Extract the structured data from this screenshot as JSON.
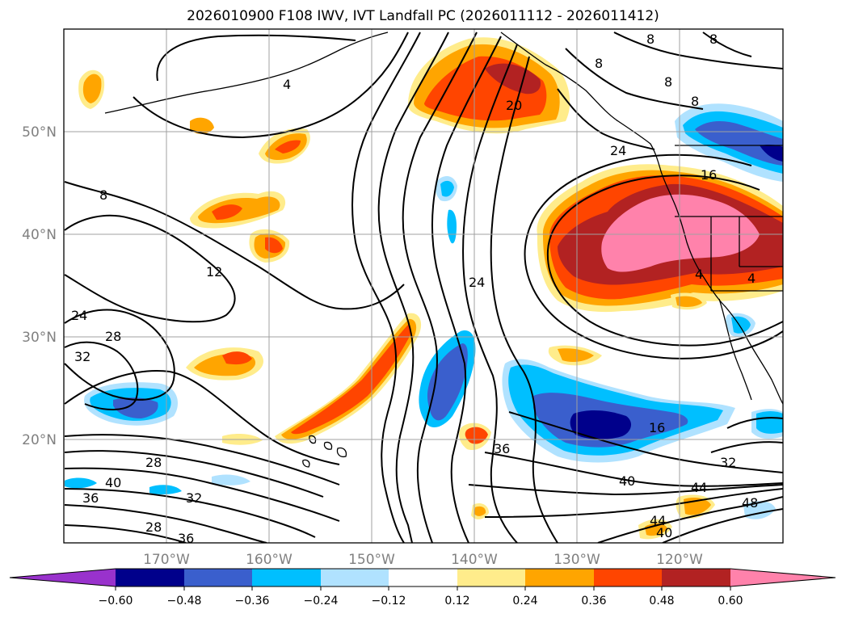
{
  "title": "2026010900 F108 IWV, IVT Landfall PC (2026011112 - 2026011412)",
  "map": {
    "projection": "plate carree",
    "extent": {
      "lon_min": -180,
      "lon_max": -110,
      "lat_min": 10,
      "lat_max": 60
    },
    "lon_ticks": [
      {
        "value": -170,
        "label": "170°W"
      },
      {
        "value": -160,
        "label": "160°W"
      },
      {
        "value": -150,
        "label": "150°W"
      },
      {
        "value": -140,
        "label": "140°W"
      },
      {
        "value": -130,
        "label": "130°W"
      },
      {
        "value": -120,
        "label": "120°W"
      }
    ],
    "lat_ticks": [
      {
        "value": 20,
        "label": "20°N"
      },
      {
        "value": 30,
        "label": "30°N"
      },
      {
        "value": 40,
        "label": "40°N"
      },
      {
        "value": 50,
        "label": "50°N"
      }
    ],
    "contour_labels": [
      "4",
      "8",
      "8",
      "8",
      "8",
      "8",
      "8",
      "12",
      "16",
      "16",
      "20",
      "24",
      "24",
      "24",
      "28",
      "28",
      "28",
      "32",
      "32",
      "32",
      "36",
      "36",
      "36",
      "40",
      "40",
      "40",
      "44",
      "44",
      "48",
      "4",
      "4"
    ]
  },
  "colorbar": {
    "levels": [
      "−0.60",
      "−0.48",
      "−0.36",
      "−0.24",
      "−0.12",
      "0.12",
      "0.24",
      "0.36",
      "0.48",
      "0.60"
    ],
    "colors": [
      "#9932cc",
      "#00008b",
      "#3a5fcd",
      "#00bfff",
      "#b0e2ff",
      "#ffffff",
      "#ffec8b",
      "#ffa500",
      "#ff4500",
      "#b22222",
      "#ff82ab"
    ]
  }
}
